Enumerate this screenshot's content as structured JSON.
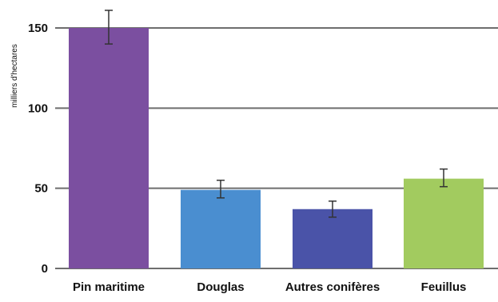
{
  "chart_data": {
    "type": "bar",
    "title": "",
    "xlabel": "",
    "ylabel": "milliers d'hectares",
    "categories": [
      "Pin maritime",
      "Douglas",
      "Autres conifères",
      "Feuillus"
    ],
    "values": [
      150,
      49,
      37,
      56
    ],
    "error_low": [
      140,
      44,
      32,
      51
    ],
    "error_high": [
      161,
      55,
      42,
      62
    ],
    "bar_colors": [
      "#7b4fa0",
      "#4a8ed0",
      "#4a53a8",
      "#a2cb5f"
    ],
    "error_bar_color": "#333333",
    "gridline_color": "#6e6e6e",
    "ylim": [
      0,
      150
    ],
    "yticks": [
      0,
      50,
      100,
      150
    ],
    "grid": true,
    "legend": "none"
  }
}
